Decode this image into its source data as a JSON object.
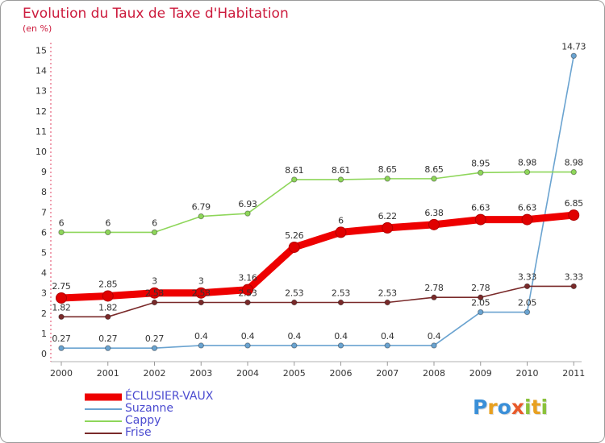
{
  "header": {
    "title": "Evolution du Taux de Taxe d'Habitation",
    "unit": "(en %)"
  },
  "logo": {
    "letters": [
      "P",
      "r",
      "o",
      "x",
      "i",
      "t",
      "i"
    ],
    "colors": [
      "#3a8fd8",
      "#e8a020",
      "#3a8fd8",
      "#e85a2a",
      "#8ac23a",
      "#e8a020",
      "#8ac23a"
    ]
  },
  "chart_data": {
    "type": "line",
    "title": "Evolution du Taux de Taxe d'Habitation",
    "ylabel": "(en %)",
    "xlabel": "",
    "x": [
      "2000",
      "2001",
      "2002",
      "2003",
      "2004",
      "2005",
      "2006",
      "2007",
      "2008",
      "2009",
      "2010",
      "2011"
    ],
    "ylim": [
      0,
      15
    ],
    "yticks": [
      "0",
      "1",
      "2",
      "3",
      "4",
      "5",
      "6",
      "7",
      "8",
      "9",
      "10",
      "11",
      "12",
      "13",
      "14",
      "15"
    ],
    "grid": false,
    "legend_position": "bottom-left",
    "series": [
      {
        "name": "ÉCLUSIER-VAUX",
        "color": "#ee0000",
        "values": [
          2.75,
          2.85,
          3,
          3,
          3.16,
          5.26,
          6,
          6.22,
          6.38,
          6.63,
          6.63,
          6.85
        ],
        "labels": [
          "2.75",
          "2.85",
          "3",
          "3",
          "3.16",
          "5.26",
          "6",
          "6.22",
          "6.38",
          "6.63",
          "6.63",
          "6.85"
        ]
      },
      {
        "name": "Suzanne",
        "color": "#6aa3d0",
        "values": [
          0.27,
          0.27,
          0.27,
          0.4,
          0.4,
          0.4,
          0.4,
          0.4,
          0.4,
          2.05,
          2.05,
          14.73
        ],
        "labels": [
          "0.27",
          "0.27",
          "0.27",
          "0.4",
          "0.4",
          "0.4",
          "0.4",
          "0.4",
          "0.4",
          "2.05",
          "2.05",
          "14.73"
        ]
      },
      {
        "name": "Cappy",
        "color": "#8ed65a",
        "values": [
          6,
          6,
          6,
          6.79,
          6.93,
          8.61,
          8.61,
          8.65,
          8.65,
          8.95,
          8.98,
          8.98
        ],
        "labels": [
          "6",
          "6",
          "6",
          "6.79",
          "6.93",
          "8.61",
          "8.61",
          "8.65",
          "8.65",
          "8.95",
          "8.98",
          "8.98"
        ]
      },
      {
        "name": "Frise",
        "color": "#7a2a2a",
        "values": [
          1.82,
          1.82,
          2.53,
          2.53,
          2.53,
          2.53,
          2.53,
          2.53,
          2.78,
          2.78,
          3.33,
          3.33
        ],
        "labels": [
          "1.82",
          "1.82",
          "2.53",
          "2.53",
          "2.53",
          "2.53",
          "2.53",
          "2.53",
          "2.78",
          "2.78",
          "3.33",
          "3.33"
        ]
      }
    ]
  }
}
